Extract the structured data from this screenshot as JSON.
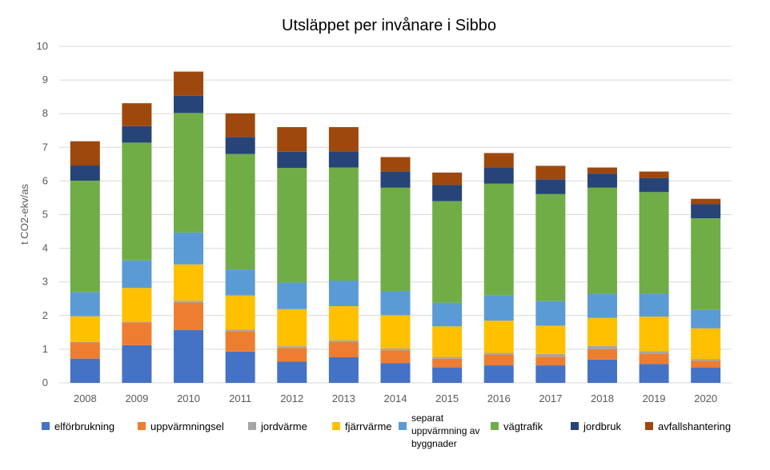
{
  "chart_data": {
    "type": "bar",
    "stacked": true,
    "title": "Utsläppet per invånare i Sibbo",
    "xlabel": "",
    "ylabel": "t CO2-ekv/as",
    "ylim": [
      0,
      10
    ],
    "yticks": [
      0,
      1,
      2,
      3,
      4,
      5,
      6,
      7,
      8,
      9,
      10
    ],
    "grid": true,
    "legend_position": "bottom",
    "categories": [
      "2008",
      "2009",
      "2010",
      "2011",
      "2012",
      "2013",
      "2014",
      "2015",
      "2016",
      "2017",
      "2018",
      "2019",
      "2020"
    ],
    "series": [
      {
        "name": "elförbrukning",
        "color": "#4472c4",
        "values": [
          0.72,
          1.12,
          1.57,
          0.93,
          0.63,
          0.76,
          0.59,
          0.46,
          0.52,
          0.52,
          0.69,
          0.56,
          0.46
        ]
      },
      {
        "name": "uppvärmningsel",
        "color": "#ed7d31",
        "values": [
          0.48,
          0.68,
          0.82,
          0.6,
          0.41,
          0.45,
          0.38,
          0.26,
          0.32,
          0.26,
          0.31,
          0.31,
          0.2
        ]
      },
      {
        "name": "jordvärme",
        "color": "#a5a5a5",
        "values": [
          0.02,
          0.02,
          0.05,
          0.05,
          0.05,
          0.05,
          0.05,
          0.05,
          0.05,
          0.08,
          0.1,
          0.07,
          0.05
        ]
      },
      {
        "name": "fjärrvärme",
        "color": "#ffc000",
        "values": [
          0.76,
          1.0,
          1.08,
          1.02,
          1.1,
          1.02,
          0.99,
          0.91,
          0.96,
          0.84,
          0.83,
          1.03,
          0.91
        ]
      },
      {
        "name": "separat uppvärmning av byggnader",
        "color": "#5b9bd5",
        "values": [
          0.72,
          0.82,
          0.95,
          0.77,
          0.79,
          0.76,
          0.72,
          0.7,
          0.76,
          0.73,
          0.72,
          0.68,
          0.55
        ]
      },
      {
        "name": "vägtrafik",
        "color": "#70ad47",
        "values": [
          3.31,
          3.5,
          3.55,
          3.43,
          3.41,
          3.36,
          3.07,
          3.02,
          3.31,
          3.18,
          3.15,
          3.02,
          2.72
        ]
      },
      {
        "name": "jordbruk",
        "color": "#264478",
        "values": [
          0.45,
          0.49,
          0.51,
          0.51,
          0.48,
          0.48,
          0.48,
          0.48,
          0.48,
          0.44,
          0.42,
          0.42,
          0.42
        ]
      },
      {
        "name": "avfallshantering",
        "color": "#9e480e",
        "values": [
          0.72,
          0.68,
          0.72,
          0.7,
          0.73,
          0.72,
          0.43,
          0.37,
          0.43,
          0.4,
          0.18,
          0.19,
          0.16
        ]
      }
    ]
  }
}
